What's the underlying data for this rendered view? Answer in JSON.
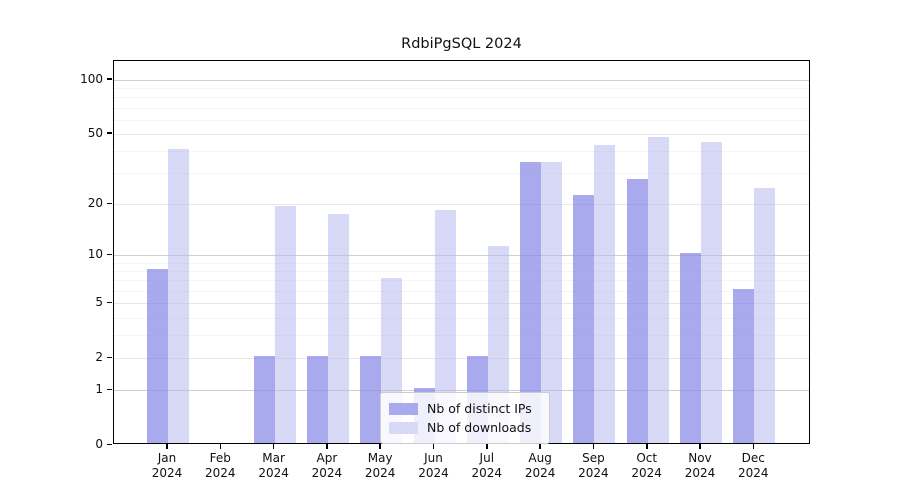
{
  "chart_data": {
    "type": "bar",
    "title": "RdbiPgSQL 2024",
    "categories": [
      "Jan 2024",
      "Feb 2024",
      "Mar 2024",
      "Apr 2024",
      "May 2024",
      "Jun 2024",
      "Jul 2024",
      "Aug 2024",
      "Sep 2024",
      "Oct 2024",
      "Nov 2024",
      "Dec 2024"
    ],
    "series": [
      {
        "name": "Nb of distinct IPs",
        "color": "rgba(136,136,232,0.72)",
        "legend_color": "#a9a9ee",
        "values": [
          8,
          0,
          2,
          2,
          2,
          1,
          2,
          34,
          22,
          27,
          10,
          6
        ]
      },
      {
        "name": "Nb of downloads",
        "color": "rgba(184,184,240,0.55)",
        "legend_color": "#d8d8f7",
        "values": [
          40,
          0,
          19,
          17,
          7,
          18,
          11,
          34,
          42,
          47,
          44,
          24
        ]
      }
    ],
    "y_axis": {
      "scale": "log1p",
      "ticks": [
        0,
        1,
        2,
        5,
        10,
        20,
        50,
        100
      ],
      "decade_ticks": [
        1,
        10,
        100
      ],
      "minor_ticks": [
        3,
        4,
        6,
        7,
        8,
        9,
        30,
        40,
        60,
        70,
        80,
        90
      ],
      "max": 127
    },
    "xlabel": "",
    "ylabel": "",
    "grid": true,
    "legend_position": "lower center"
  },
  "colors": {
    "background": "#ffffff",
    "spine": "#000000",
    "grid_decade": "#cfcfcf",
    "grid_major": "#e7e7e7",
    "grid_minor": "#f4f4f4",
    "text": "#111111"
  }
}
